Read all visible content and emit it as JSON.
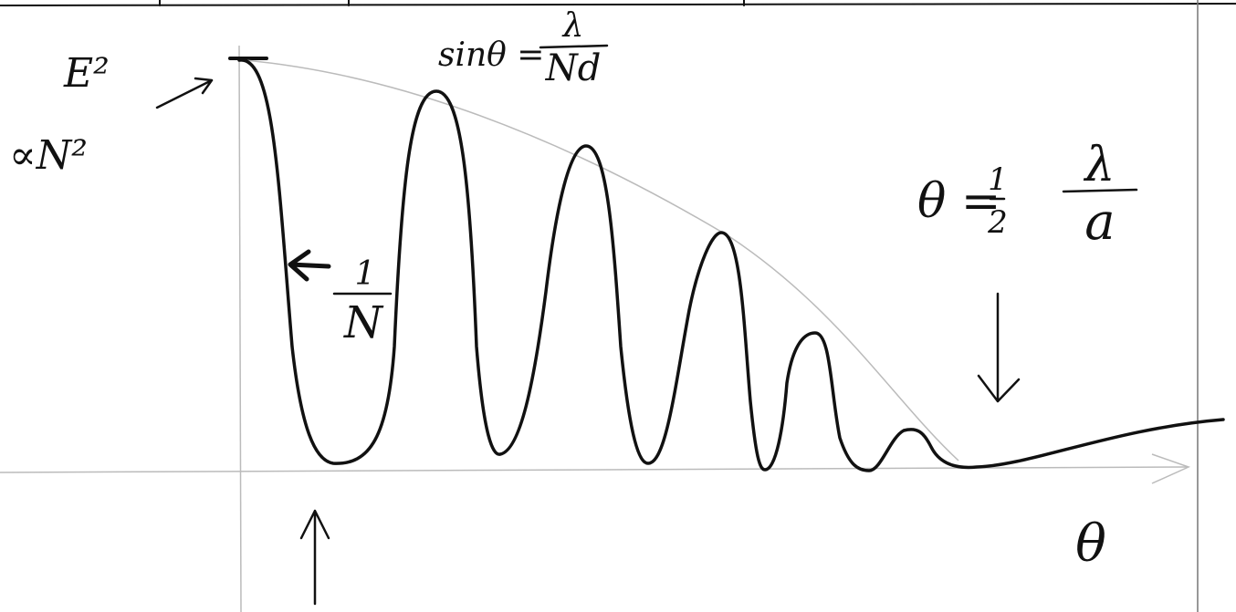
{
  "labels": {
    "y_axis": "E²",
    "peak": "∝N²",
    "formula": {
      "lhs": "sinθ =",
      "num": "λ",
      "den": "Nd"
    },
    "width": {
      "num": "1",
      "den": "N"
    },
    "envelope": {
      "lhs": "θ =",
      "half_num": "1",
      "half_den": "2",
      "num": "λ",
      "den": "a"
    },
    "x_axis": "θ"
  }
}
